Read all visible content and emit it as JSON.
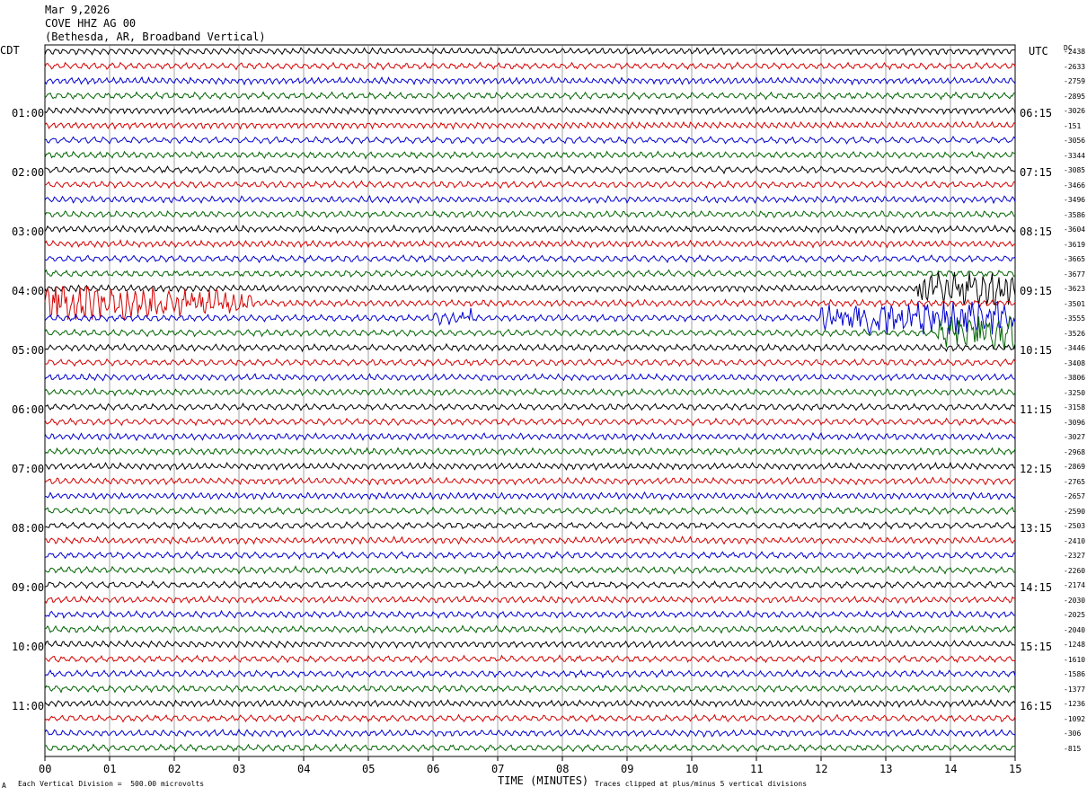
{
  "header": {
    "date": "Mar 9,2026",
    "station": "COVE HHZ AG 00",
    "location": "(Bethesda, AR, Broadband Vertical)"
  },
  "left_tz": "CDT",
  "right_tz": "UTC",
  "footer": {
    "scale_note": "Each Vertical Division =  500.00 microvolts",
    "clip_note": "Traces clipped at plus/minus 5 vertical divisions",
    "corner_mark": "A"
  },
  "chart_data": {
    "type": "line",
    "title": "",
    "xlabel": "TIME (MINUTES)",
    "ylabel": "",
    "xlim": [
      0,
      15
    ],
    "x_ticks": [
      "00",
      "01",
      "02",
      "03",
      "04",
      "05",
      "06",
      "07",
      "08",
      "09",
      "10",
      "11",
      "12",
      "13",
      "14",
      "15"
    ],
    "grid": true,
    "trace_colors": [
      "#000000",
      "#d40000",
      "#0000d0",
      "#006400"
    ],
    "trace_count": 48,
    "trace_minutes": 15,
    "left_time_labels": [
      "01:00",
      "02:00",
      "03:00",
      "04:00",
      "05:00",
      "06:00",
      "07:00",
      "08:00",
      "09:00",
      "10:00",
      "11:00"
    ],
    "right_time_labels": [
      "06:15",
      "07:15",
      "08:15",
      "09:15",
      "10:15",
      "11:15",
      "12:15",
      "13:15",
      "14:15",
      "15:15",
      "16:15"
    ],
    "right_offsets": [
      "-2438",
      "-2633",
      "-2759",
      "-2895",
      "-3026",
      "-151",
      "-3056",
      "-3344",
      "-3085",
      "-3466",
      "-3496",
      "-3586",
      "-3604",
      "-3619",
      "-3665",
      "-3677",
      "-3623",
      "-3501",
      "-3555",
      "-3526",
      "-3446",
      "-3408",
      "-3806",
      "-3250",
      "-3158",
      "-3096",
      "-3027",
      "-2968",
      "-2869",
      "-2765",
      "-2657",
      "-2590",
      "-2503",
      "-2410",
      "-2327",
      "-2260",
      "-2174",
      "-2030",
      "-2025",
      "-2040",
      "-1248",
      "-1610",
      "-1586",
      "-1377",
      "-1236",
      "-1092",
      "-306",
      "-815"
    ],
    "dc_label": "DC",
    "events": [
      {
        "trace": 17,
        "start_min": 0.0,
        "end_min": 3.2,
        "amplitude": "large",
        "note": "burst"
      },
      {
        "trace": 18,
        "start_min": 6.0,
        "end_min": 6.6,
        "amplitude": "medium"
      },
      {
        "trace": 18,
        "start_min": 12.0,
        "end_min": 15.0,
        "amplitude": "large"
      },
      {
        "trace": 16,
        "start_min": 13.5,
        "end_min": 15.0,
        "amplitude": "large"
      },
      {
        "trace": 19,
        "start_min": 13.8,
        "end_min": 15.0,
        "amplitude": "large"
      }
    ]
  }
}
